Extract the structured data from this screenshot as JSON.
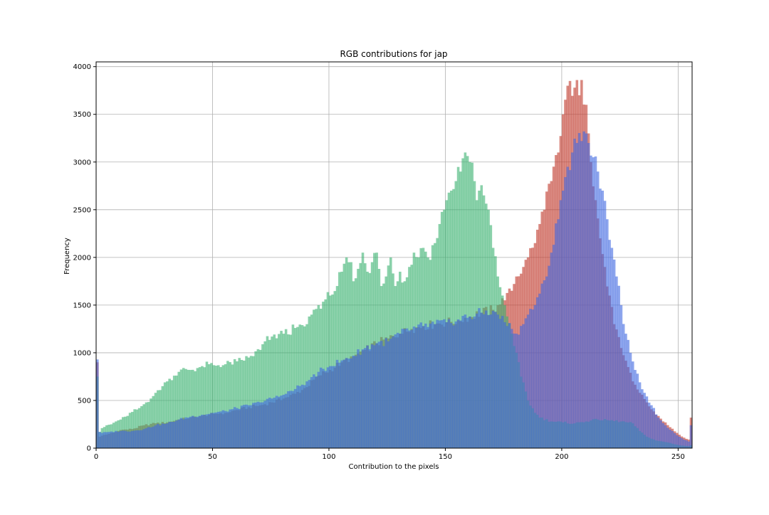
{
  "chart_data": {
    "type": "histogram",
    "title": "RGB contributions for jap",
    "xlabel": "Contribution to the pixels",
    "ylabel": "Frequency",
    "xlim": [
      0,
      256
    ],
    "ylim": [
      0,
      4050
    ],
    "xticks": [
      0,
      50,
      100,
      150,
      200,
      250
    ],
    "yticks": [
      0,
      500,
      1000,
      1500,
      2000,
      2500,
      3000,
      3500,
      4000
    ],
    "grid": true,
    "bin_width": 1,
    "alpha": 0.6,
    "series": [
      {
        "color": "#c0392b",
        "keypoints": [
          [
            0,
            900
          ],
          [
            1,
            120
          ],
          [
            3,
            140
          ],
          [
            5,
            150
          ],
          [
            8,
            170
          ],
          [
            10,
            190
          ],
          [
            15,
            200
          ],
          [
            20,
            240
          ],
          [
            25,
            260
          ],
          [
            30,
            270
          ],
          [
            35,
            300
          ],
          [
            40,
            320
          ],
          [
            45,
            340
          ],
          [
            50,
            360
          ],
          [
            55,
            370
          ],
          [
            60,
            400
          ],
          [
            65,
            430
          ],
          [
            70,
            450
          ],
          [
            75,
            480
          ],
          [
            80,
            520
          ],
          [
            85,
            570
          ],
          [
            90,
            640
          ],
          [
            95,
            760
          ],
          [
            100,
            820
          ],
          [
            105,
            900
          ],
          [
            110,
            960
          ],
          [
            115,
            1030
          ],
          [
            120,
            1100
          ],
          [
            125,
            1150
          ],
          [
            130,
            1200
          ],
          [
            135,
            1250
          ],
          [
            140,
            1280
          ],
          [
            145,
            1300
          ],
          [
            150,
            1320
          ],
          [
            155,
            1340
          ],
          [
            160,
            1380
          ],
          [
            165,
            1420
          ],
          [
            170,
            1450
          ],
          [
            172,
            1500
          ],
          [
            175,
            1550
          ],
          [
            178,
            1650
          ],
          [
            180,
            1800
          ],
          [
            183,
            1900
          ],
          [
            185,
            2000
          ],
          [
            188,
            2150
          ],
          [
            190,
            2350
          ],
          [
            192,
            2500
          ],
          [
            195,
            2800
          ],
          [
            198,
            3100
          ],
          [
            200,
            3500
          ],
          [
            202,
            3800
          ],
          [
            203,
            3850
          ],
          [
            205,
            3780
          ],
          [
            207,
            3700
          ],
          [
            208,
            3860
          ],
          [
            210,
            3600
          ],
          [
            211,
            3300
          ],
          [
            212,
            3000
          ],
          [
            214,
            2600
          ],
          [
            216,
            2200
          ],
          [
            218,
            1900
          ],
          [
            220,
            1600
          ],
          [
            222,
            1300
          ],
          [
            225,
            1050
          ],
          [
            228,
            850
          ],
          [
            230,
            700
          ],
          [
            233,
            580
          ],
          [
            236,
            480
          ],
          [
            240,
            350
          ],
          [
            243,
            280
          ],
          [
            246,
            220
          ],
          [
            249,
            160
          ],
          [
            252,
            110
          ],
          [
            254,
            90
          ],
          [
            255,
            320
          ]
        ]
      },
      {
        "color": "#3cb371",
        "keypoints": [
          [
            0,
            750
          ],
          [
            1,
            170
          ],
          [
            2,
            210
          ],
          [
            4,
            240
          ],
          [
            6,
            250
          ],
          [
            8,
            280
          ],
          [
            10,
            300
          ],
          [
            12,
            330
          ],
          [
            15,
            380
          ],
          [
            18,
            420
          ],
          [
            20,
            460
          ],
          [
            23,
            520
          ],
          [
            25,
            580
          ],
          [
            28,
            650
          ],
          [
            30,
            700
          ],
          [
            33,
            760
          ],
          [
            35,
            800
          ],
          [
            38,
            830
          ],
          [
            40,
            820
          ],
          [
            43,
            840
          ],
          [
            45,
            860
          ],
          [
            48,
            880
          ],
          [
            50,
            870
          ],
          [
            55,
            880
          ],
          [
            60,
            910
          ],
          [
            65,
            950
          ],
          [
            70,
            1030
          ],
          [
            72,
            1120
          ],
          [
            75,
            1170
          ],
          [
            80,
            1200
          ],
          [
            85,
            1260
          ],
          [
            88,
            1290
          ],
          [
            90,
            1300
          ],
          [
            92,
            1400
          ],
          [
            95,
            1500
          ],
          [
            98,
            1560
          ],
          [
            100,
            1600
          ],
          [
            103,
            1700
          ],
          [
            105,
            1850
          ],
          [
            107,
            2000
          ],
          [
            109,
            1950
          ],
          [
            110,
            1750
          ],
          [
            112,
            1880
          ],
          [
            114,
            2050
          ],
          [
            116,
            1850
          ],
          [
            118,
            1950
          ],
          [
            120,
            2050
          ],
          [
            122,
            1700
          ],
          [
            124,
            1800
          ],
          [
            126,
            2000
          ],
          [
            128,
            1700
          ],
          [
            130,
            1850
          ],
          [
            132,
            1750
          ],
          [
            134,
            1900
          ],
          [
            136,
            2050
          ],
          [
            138,
            2000
          ],
          [
            140,
            2100
          ],
          [
            142,
            2000
          ],
          [
            145,
            2150
          ],
          [
            147,
            2350
          ],
          [
            149,
            2500
          ],
          [
            150,
            2600
          ],
          [
            152,
            2700
          ],
          [
            154,
            2800
          ],
          [
            156,
            2900
          ],
          [
            158,
            3100
          ],
          [
            160,
            3000
          ],
          [
            162,
            2800
          ],
          [
            163,
            2600
          ],
          [
            164,
            2700
          ],
          [
            166,
            2650
          ],
          [
            168,
            2500
          ],
          [
            170,
            2100
          ],
          [
            172,
            1800
          ],
          [
            174,
            1600
          ],
          [
            175,
            1500
          ],
          [
            178,
            1200
          ],
          [
            180,
            1000
          ],
          [
            182,
            750
          ],
          [
            185,
            500
          ],
          [
            188,
            370
          ],
          [
            190,
            320
          ],
          [
            195,
            280
          ],
          [
            200,
            270
          ],
          [
            205,
            260
          ],
          [
            210,
            280
          ],
          [
            215,
            300
          ],
          [
            220,
            290
          ],
          [
            225,
            280
          ],
          [
            230,
            260
          ],
          [
            233,
            180
          ],
          [
            235,
            140
          ],
          [
            237,
            110
          ],
          [
            240,
            80
          ],
          [
            245,
            60
          ],
          [
            250,
            30
          ],
          [
            254,
            20
          ],
          [
            255,
            30
          ]
        ]
      },
      {
        "color": "#4169e1",
        "keypoints": [
          [
            0,
            930
          ],
          [
            1,
            170
          ],
          [
            2,
            160
          ],
          [
            5,
            170
          ],
          [
            10,
            180
          ],
          [
            15,
            180
          ],
          [
            20,
            200
          ],
          [
            25,
            240
          ],
          [
            30,
            260
          ],
          [
            35,
            300
          ],
          [
            40,
            330
          ],
          [
            45,
            350
          ],
          [
            50,
            370
          ],
          [
            55,
            390
          ],
          [
            60,
            420
          ],
          [
            65,
            450
          ],
          [
            70,
            480
          ],
          [
            75,
            520
          ],
          [
            80,
            560
          ],
          [
            85,
            620
          ],
          [
            90,
            700
          ],
          [
            95,
            800
          ],
          [
            100,
            860
          ],
          [
            105,
            920
          ],
          [
            110,
            970
          ],
          [
            115,
            1050
          ],
          [
            120,
            1100
          ],
          [
            125,
            1120
          ],
          [
            130,
            1200
          ],
          [
            135,
            1240
          ],
          [
            140,
            1280
          ],
          [
            145,
            1300
          ],
          [
            150,
            1320
          ],
          [
            155,
            1350
          ],
          [
            160,
            1380
          ],
          [
            165,
            1420
          ],
          [
            170,
            1440
          ],
          [
            172,
            1400
          ],
          [
            175,
            1320
          ],
          [
            178,
            1250
          ],
          [
            180,
            1200
          ],
          [
            183,
            1300
          ],
          [
            185,
            1400
          ],
          [
            188,
            1500
          ],
          [
            190,
            1620
          ],
          [
            193,
            1800
          ],
          [
            195,
            2050
          ],
          [
            198,
            2400
          ],
          [
            200,
            2700
          ],
          [
            202,
            2950
          ],
          [
            204,
            3100
          ],
          [
            206,
            3200
          ],
          [
            208,
            3220
          ],
          [
            210,
            3300
          ],
          [
            211,
            3200
          ],
          [
            213,
            3050
          ],
          [
            215,
            2900
          ],
          [
            217,
            2700
          ],
          [
            219,
            2400
          ],
          [
            221,
            2100
          ],
          [
            223,
            1800
          ],
          [
            225,
            1500
          ],
          [
            227,
            1200
          ],
          [
            229,
            1000
          ],
          [
            231,
            820
          ],
          [
            233,
            690
          ],
          [
            235,
            580
          ],
          [
            238,
            450
          ],
          [
            241,
            320
          ],
          [
            244,
            240
          ],
          [
            247,
            180
          ],
          [
            250,
            120
          ],
          [
            252,
            90
          ],
          [
            254,
            70
          ],
          [
            255,
            240
          ]
        ]
      }
    ]
  }
}
